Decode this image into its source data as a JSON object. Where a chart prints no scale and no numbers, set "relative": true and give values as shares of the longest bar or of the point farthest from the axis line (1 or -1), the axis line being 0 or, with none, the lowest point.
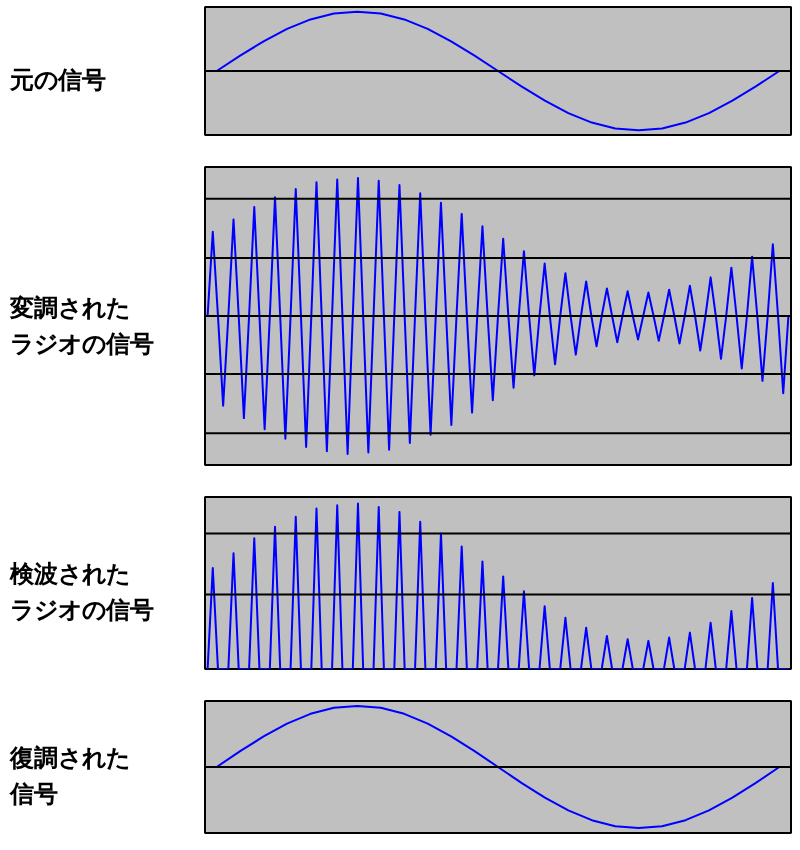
{
  "chart_data": [
    {
      "type": "line",
      "ylabel": "元の信号",
      "relative": true,
      "categories": [
        null,
        null,
        null,
        null,
        null,
        null,
        null,
        null,
        null,
        null,
        null,
        null,
        null,
        null,
        null,
        null,
        null,
        null,
        null,
        null,
        null,
        null,
        null,
        null,
        null
      ],
      "series": [
        {
          "color": "#0000ff",
          "values": [
            0,
            0.26,
            0.5,
            0.71,
            0.87,
            0.97,
            1,
            0.97,
            0.87,
            0.71,
            0.5,
            0.26,
            0,
            -0.26,
            -0.5,
            -0.71,
            -0.87,
            -0.97,
            -1,
            -0.97,
            -0.87,
            -0.71,
            -0.5,
            -0.26,
            0
          ]
        }
      ],
      "ref_lines": [
        {
          "axis": "y",
          "value": 0,
          "color": "#000000"
        }
      ]
    },
    {
      "type": "line",
      "ylabel": "変調されたラジオの信号",
      "relative": true,
      "categories": [
        null,
        null,
        null,
        null,
        null,
        null,
        null,
        null,
        null,
        null,
        null,
        null,
        null,
        null,
        null,
        null,
        null,
        null,
        null,
        null,
        null,
        null,
        null,
        null,
        null,
        null,
        null,
        null,
        null,
        null,
        null,
        null,
        null,
        null,
        null,
        null,
        null,
        null,
        null,
        null,
        null,
        null,
        null,
        null,
        null,
        null,
        null,
        null,
        null,
        null,
        null,
        null,
        null,
        null,
        null,
        null,
        null,
        null,
        null,
        null,
        null,
        null,
        null,
        null,
        null,
        null,
        null,
        null,
        null,
        null,
        null,
        null,
        null,
        null,
        null,
        null,
        null,
        null,
        null,
        null,
        null,
        null,
        null,
        null,
        null,
        null,
        null,
        null,
        null,
        null,
        null,
        null,
        null,
        null,
        null,
        null,
        null,
        null,
        null,
        null,
        null,
        null,
        null,
        null,
        null,
        null,
        null,
        null,
        null,
        null,
        null,
        null,
        null
      ],
      "series": [
        {
          "color": "#0000ff",
          "values": [
            0,
            0.61,
            0,
            -0.65,
            0,
            0.7,
            0,
            -0.74,
            0,
            0.79,
            0,
            -0.82,
            0,
            0.86,
            0,
            -0.89,
            0,
            0.92,
            0,
            -0.95,
            0,
            0.97,
            0,
            -0.98,
            0,
            0.99,
            0,
            -1,
            0,
            1,
            0,
            -0.99,
            0,
            0.98,
            0,
            -0.97,
            0,
            0.95,
            0,
            -0.92,
            0,
            0.89,
            0,
            -0.86,
            0,
            0.82,
            0,
            -0.79,
            0,
            0.74,
            0,
            -0.7,
            0,
            0.65,
            0,
            -0.61,
            0,
            0.56,
            0,
            -0.52,
            0,
            0.47,
            0,
            -0.43,
            0,
            0.38,
            0,
            -0.35,
            0,
            0.31,
            0,
            -0.28,
            0,
            0.25,
            0,
            -0.22,
            0,
            0.2,
            0,
            -0.19,
            0,
            0.18,
            0,
            -0.17,
            0,
            0.17,
            0,
            -0.18,
            0,
            0.19,
            0,
            -0.2,
            0,
            0.22,
            0,
            -0.25,
            0,
            0.28,
            0,
            -0.31,
            0,
            0.35,
            0,
            -0.38,
            0,
            0.43,
            0,
            -0.47,
            0,
            0.52,
            0,
            -0.56,
            0
          ]
        }
      ],
      "ref_lines": [
        {
          "axis": "y",
          "value": -0.85,
          "color": "#000000"
        },
        {
          "axis": "y",
          "value": -0.42,
          "color": "#000000"
        },
        {
          "axis": "y",
          "value": 0,
          "color": "#000000"
        },
        {
          "axis": "y",
          "value": 0.42,
          "color": "#000000"
        },
        {
          "axis": "y",
          "value": 0.85,
          "color": "#000000"
        }
      ]
    },
    {
      "type": "line",
      "ylabel": "検波されたラジオの信号",
      "relative": true,
      "categories": [
        null,
        null,
        null,
        null,
        null,
        null,
        null,
        null,
        null,
        null,
        null,
        null,
        null,
        null,
        null,
        null,
        null,
        null,
        null,
        null,
        null,
        null,
        null,
        null,
        null,
        null,
        null,
        null,
        null,
        null,
        null,
        null,
        null,
        null,
        null,
        null,
        null,
        null,
        null,
        null,
        null,
        null,
        null,
        null,
        null,
        null,
        null,
        null,
        null,
        null,
        null,
        null,
        null,
        null,
        null,
        null,
        null,
        null,
        null,
        null,
        null,
        null,
        null,
        null,
        null,
        null,
        null,
        null,
        null,
        null,
        null,
        null,
        null,
        null,
        null,
        null,
        null,
        null,
        null,
        null,
        null,
        null,
        null,
        null,
        null,
        null,
        null,
        null,
        null,
        null,
        null,
        null,
        null,
        null,
        null,
        null,
        null,
        null,
        null,
        null,
        null,
        null,
        null,
        null,
        null,
        null,
        null,
        null,
        null,
        null,
        null,
        null,
        null
      ],
      "series": [
        {
          "color": "#0000ff",
          "values": [
            0,
            0.61,
            0,
            0,
            0,
            0.7,
            0,
            0,
            0,
            0.79,
            0,
            0,
            0,
            0.86,
            0,
            0,
            0,
            0.92,
            0,
            0,
            0,
            0.97,
            0,
            0,
            0,
            0.99,
            0,
            0,
            0,
            1,
            0,
            0,
            0,
            0.98,
            0,
            0,
            0,
            0.95,
            0,
            0,
            0,
            0.89,
            0,
            0,
            0,
            0.82,
            0,
            0,
            0,
            0.74,
            0,
            0,
            0,
            0.65,
            0,
            0,
            0,
            0.56,
            0,
            0,
            0,
            0.47,
            0,
            0,
            0,
            0.38,
            0,
            0,
            0,
            0.31,
            0,
            0,
            0,
            0.25,
            0,
            0,
            0,
            0.2,
            0,
            0,
            0,
            0.18,
            0,
            0,
            0,
            0.17,
            0,
            0,
            0,
            0.19,
            0,
            0,
            0,
            0.22,
            0,
            0,
            0,
            0.28,
            0,
            0,
            0,
            0.35,
            0,
            0,
            0,
            0.43,
            0,
            0,
            0,
            0.52,
            0,
            0,
            0
          ]
        }
      ],
      "ref_lines": [
        {
          "axis": "y",
          "value": 0.45,
          "color": "#000000"
        },
        {
          "axis": "y",
          "value": 0.82,
          "color": "#000000"
        }
      ]
    },
    {
      "type": "line",
      "ylabel": "復調された信号",
      "relative": true,
      "categories": [
        null,
        null,
        null,
        null,
        null,
        null,
        null,
        null,
        null,
        null,
        null,
        null,
        null,
        null,
        null,
        null,
        null,
        null,
        null,
        null,
        null,
        null,
        null,
        null,
        null
      ],
      "series": [
        {
          "color": "#0000ff",
          "values": [
            0,
            0.26,
            0.5,
            0.71,
            0.87,
            0.97,
            1,
            0.97,
            0.87,
            0.71,
            0.5,
            0.26,
            0,
            -0.26,
            -0.5,
            -0.71,
            -0.87,
            -0.97,
            -1,
            -0.97,
            -0.87,
            -0.71,
            -0.5,
            -0.26,
            0
          ]
        }
      ],
      "ref_lines": [
        {
          "axis": "y",
          "value": 0,
          "color": "#000000"
        }
      ]
    }
  ]
}
